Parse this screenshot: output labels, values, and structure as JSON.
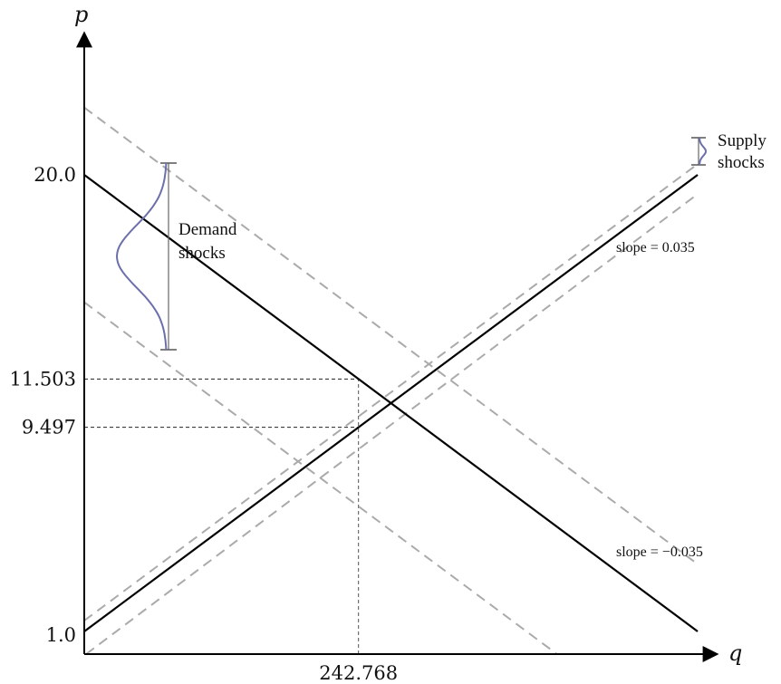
{
  "chart_data": {
    "type": "line",
    "title": "",
    "xlabel": "q",
    "ylabel": "p",
    "grid": false,
    "x_ticks": [
      {
        "value": 242.768,
        "label": "242.768"
      }
    ],
    "y_ticks": [
      {
        "value": 1.0,
        "label": "1.0"
      },
      {
        "value": 9.497,
        "label": "9.497"
      },
      {
        "value": 11.503,
        "label": "11.503"
      },
      {
        "value": 20.0,
        "label": "20.0"
      }
    ],
    "series": [
      {
        "role": "demand",
        "style": "solid",
        "color": "#000000",
        "x": [
          0,
          543
        ],
        "y": [
          20.0,
          1.0
        ],
        "annotation": "slope = −0.035"
      },
      {
        "role": "supply",
        "style": "solid",
        "color": "#000000",
        "x": [
          0,
          543
        ],
        "y": [
          1.0,
          20.0
        ],
        "annotation": "slope = 0.035"
      },
      {
        "role": "demand-upper",
        "style": "dashed",
        "color": "#aaaaaa",
        "x": [
          0,
          543
        ],
        "y": [
          22.8,
          3.8
        ]
      },
      {
        "role": "demand-lower",
        "style": "dashed",
        "color": "#aaaaaa",
        "x": [
          0,
          543
        ],
        "y": [
          14.7,
          -4.3
        ]
      },
      {
        "role": "supply-upper",
        "style": "dashed",
        "color": "#aaaaaa",
        "x": [
          0,
          543
        ],
        "y": [
          1.45,
          20.45
        ]
      },
      {
        "role": "supply-lower",
        "style": "dashed",
        "color": "#aaaaaa",
        "x": [
          0,
          543
        ],
        "y": [
          0.0,
          19.2
        ]
      }
    ],
    "reference_lines": [
      {
        "type": "horizontal",
        "y": 11.503,
        "x_from": 0,
        "x_to": 242.768
      },
      {
        "type": "horizontal",
        "y": 9.497,
        "x_from": 0,
        "x_to": 242.768
      },
      {
        "type": "vertical",
        "x": 242.768,
        "y_from": 0,
        "y_to": 11.503
      }
    ],
    "shocks": {
      "demand": {
        "label_line1": "Demand",
        "label_line2": "shocks",
        "color": "#6b6faa"
      },
      "supply": {
        "label_line1": "Supply",
        "label_line2": "shocks",
        "color": "#6b6faa"
      }
    }
  }
}
